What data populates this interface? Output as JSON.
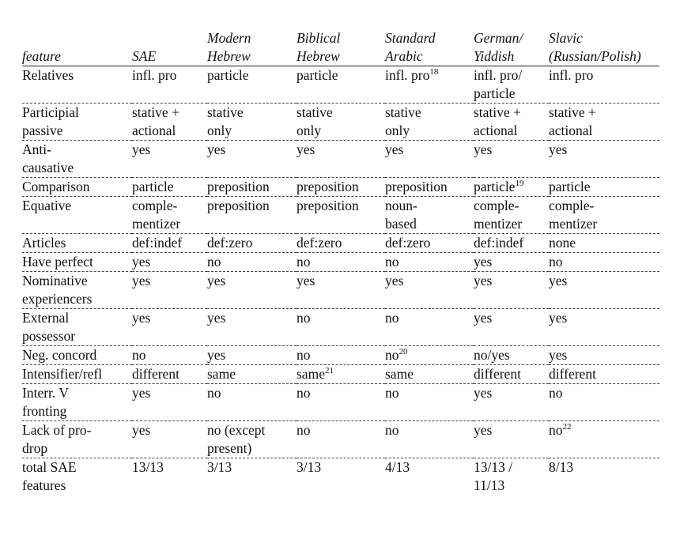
{
  "table": {
    "headers": [
      [
        "feature"
      ],
      [
        "SAE"
      ],
      [
        "Modern",
        "Hebrew"
      ],
      [
        "Biblical",
        "Hebrew"
      ],
      [
        "Standard",
        "Arabic"
      ],
      [
        "German/",
        "Yiddish"
      ],
      [
        "Slavic",
        "(Russian/Polish)"
      ]
    ],
    "rows": [
      [
        [
          {
            "t": "Relatives"
          }
        ],
        [
          {
            "t": "infl. pro"
          }
        ],
        [
          {
            "t": "particle"
          }
        ],
        [
          {
            "t": "particle"
          }
        ],
        [
          {
            "t": "infl. pro",
            "sup": "18"
          }
        ],
        [
          {
            "t": "infl. pro/"
          },
          {
            "t": "particle"
          }
        ],
        [
          {
            "t": "infl. pro"
          }
        ]
      ],
      [
        [
          {
            "t": "Participial"
          },
          {
            "t": "passive"
          }
        ],
        [
          {
            "t": "stative +"
          },
          {
            "t": "actional"
          }
        ],
        [
          {
            "t": "stative"
          },
          {
            "t": "only"
          }
        ],
        [
          {
            "t": "stative"
          },
          {
            "t": "only"
          }
        ],
        [
          {
            "t": "stative"
          },
          {
            "t": "only"
          }
        ],
        [
          {
            "t": "stative +"
          },
          {
            "t": "actional"
          }
        ],
        [
          {
            "t": "stative +"
          },
          {
            "t": "actional"
          }
        ]
      ],
      [
        [
          {
            "t": "Anti-"
          },
          {
            "t": "causative"
          }
        ],
        [
          {
            "t": "yes"
          }
        ],
        [
          {
            "t": "yes"
          }
        ],
        [
          {
            "t": "yes"
          }
        ],
        [
          {
            "t": "yes"
          }
        ],
        [
          {
            "t": "yes"
          }
        ],
        [
          {
            "t": "yes"
          }
        ]
      ],
      [
        [
          {
            "t": "Comparison"
          }
        ],
        [
          {
            "t": "particle"
          }
        ],
        [
          {
            "t": "preposition"
          }
        ],
        [
          {
            "t": "preposition"
          }
        ],
        [
          {
            "t": "preposition"
          }
        ],
        [
          {
            "t": "particle",
            "sup": "19"
          }
        ],
        [
          {
            "t": "particle"
          }
        ]
      ],
      [
        [
          {
            "t": "Equative"
          }
        ],
        [
          {
            "t": "comple-"
          },
          {
            "t": "mentizer"
          }
        ],
        [
          {
            "t": "preposition"
          }
        ],
        [
          {
            "t": "preposition"
          }
        ],
        [
          {
            "t": "noun-"
          },
          {
            "t": "based"
          }
        ],
        [
          {
            "t": "comple-"
          },
          {
            "t": "mentizer"
          }
        ],
        [
          {
            "t": "comple-"
          },
          {
            "t": "mentizer"
          }
        ]
      ],
      [
        [
          {
            "t": "Articles"
          }
        ],
        [
          {
            "t": "def:indef"
          }
        ],
        [
          {
            "t": "def:zero"
          }
        ],
        [
          {
            "t": "def:zero"
          }
        ],
        [
          {
            "t": "def:zero"
          }
        ],
        [
          {
            "t": "def:indef"
          }
        ],
        [
          {
            "t": "none"
          }
        ]
      ],
      [
        [
          {
            "t": "Have perfect"
          }
        ],
        [
          {
            "t": "yes"
          }
        ],
        [
          {
            "t": "no"
          }
        ],
        [
          {
            "t": "no"
          }
        ],
        [
          {
            "t": "no"
          }
        ],
        [
          {
            "t": "yes"
          }
        ],
        [
          {
            "t": "no"
          }
        ]
      ],
      [
        [
          {
            "t": "Nominative"
          },
          {
            "t": "experiencers"
          }
        ],
        [
          {
            "t": "yes"
          }
        ],
        [
          {
            "t": "yes"
          }
        ],
        [
          {
            "t": "yes"
          }
        ],
        [
          {
            "t": "yes"
          }
        ],
        [
          {
            "t": "yes"
          }
        ],
        [
          {
            "t": "yes"
          }
        ]
      ],
      [
        [
          {
            "t": "External"
          },
          {
            "t": "possessor"
          }
        ],
        [
          {
            "t": "yes"
          }
        ],
        [
          {
            "t": "yes"
          }
        ],
        [
          {
            "t": "no"
          }
        ],
        [
          {
            "t": "no"
          }
        ],
        [
          {
            "t": "yes"
          }
        ],
        [
          {
            "t": "yes"
          }
        ]
      ],
      [
        [
          {
            "t": "Neg. concord"
          }
        ],
        [
          {
            "t": "no"
          }
        ],
        [
          {
            "t": "yes"
          }
        ],
        [
          {
            "t": "no"
          }
        ],
        [
          {
            "t": "no",
            "sup": "20"
          }
        ],
        [
          {
            "t": "no/yes"
          }
        ],
        [
          {
            "t": "yes"
          }
        ]
      ],
      [
        [
          {
            "t": "Intensifier/refl"
          }
        ],
        [
          {
            "t": "different"
          }
        ],
        [
          {
            "t": "same"
          }
        ],
        [
          {
            "t": "same",
            "sup": "21"
          }
        ],
        [
          {
            "t": "same"
          }
        ],
        [
          {
            "t": "different"
          }
        ],
        [
          {
            "t": "different"
          }
        ]
      ],
      [
        [
          {
            "t": "Interr. V"
          },
          {
            "t": "fronting"
          }
        ],
        [
          {
            "t": "yes"
          }
        ],
        [
          {
            "t": "no"
          }
        ],
        [
          {
            "t": "no"
          }
        ],
        [
          {
            "t": "no"
          }
        ],
        [
          {
            "t": "yes"
          }
        ],
        [
          {
            "t": "no"
          }
        ]
      ],
      [
        [
          {
            "t": "Lack of pro-"
          },
          {
            "t": "drop"
          }
        ],
        [
          {
            "t": "yes"
          }
        ],
        [
          {
            "t": "no (except"
          },
          {
            "t": "present)"
          }
        ],
        [
          {
            "t": "no"
          }
        ],
        [
          {
            "t": "no"
          }
        ],
        [
          {
            "t": "yes"
          }
        ],
        [
          {
            "t": "no",
            "sup": "22"
          }
        ]
      ],
      [
        [
          {
            "t": "total SAE"
          },
          {
            "t": "features"
          }
        ],
        [
          {
            "t": "13/13"
          }
        ],
        [
          {
            "t": "3/13"
          }
        ],
        [
          {
            "t": "3/13"
          }
        ],
        [
          {
            "t": "4/13"
          }
        ],
        [
          {
            "t": "13/13  /"
          },
          {
            "t": "11/13"
          }
        ],
        [
          {
            "t": "8/13"
          }
        ]
      ]
    ]
  }
}
